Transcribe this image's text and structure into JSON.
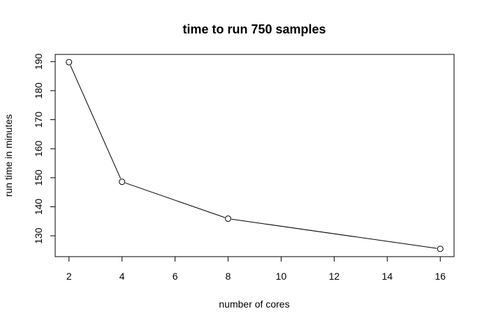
{
  "chart_data": {
    "type": "line",
    "title": "time to run 750 samples",
    "xlabel": "number of cores",
    "ylabel": "run time in minutes",
    "x": [
      2,
      4,
      8,
      16
    ],
    "series": [
      {
        "values": [
          189.8,
          148.6,
          135.9,
          125.5
        ]
      }
    ],
    "xticks": [
      2,
      4,
      6,
      8,
      10,
      12,
      14,
      16
    ],
    "yticks": [
      130,
      140,
      150,
      160,
      170,
      180,
      190
    ],
    "xlim": [
      1.48,
      16.52
    ],
    "ylim": [
      122.82,
      192.48
    ],
    "line_color": "#000000",
    "marker": "open-circle",
    "grid": false
  }
}
